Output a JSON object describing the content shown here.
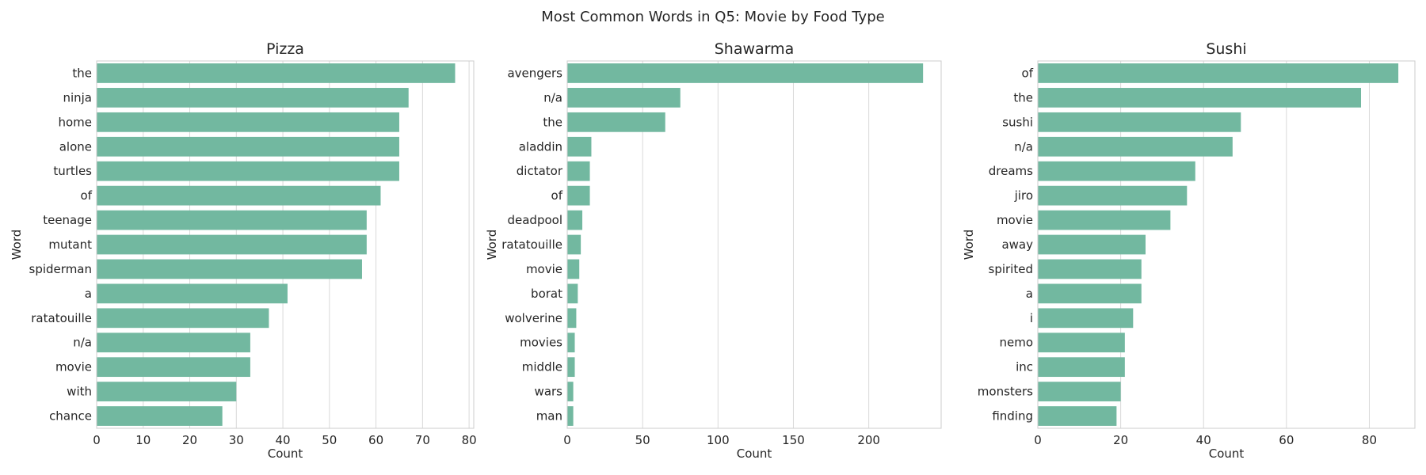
{
  "suptitle": "Most Common Words in Q5: Movie by Food Type",
  "bar_color": "#72b8a0",
  "chart_data": [
    {
      "type": "bar",
      "orientation": "horizontal",
      "title": "Pizza",
      "xlabel": "Count",
      "ylabel": "Word",
      "xlim": [
        0,
        81
      ],
      "xticks": [
        0,
        10,
        20,
        30,
        40,
        50,
        60,
        70,
        80
      ],
      "grid": true,
      "categories": [
        "the",
        "ninja",
        "home",
        "alone",
        "turtles",
        "of",
        "teenage",
        "mutant",
        "spiderman",
        "a",
        "ratatouille",
        "n/a",
        "movie",
        "with",
        "chance"
      ],
      "values": [
        77,
        67,
        65,
        65,
        65,
        61,
        58,
        58,
        57,
        41,
        37,
        33,
        33,
        30,
        27
      ]
    },
    {
      "type": "bar",
      "orientation": "horizontal",
      "title": "Shawarma",
      "xlabel": "Count",
      "ylabel": "Word",
      "xlim": [
        0,
        248
      ],
      "xticks": [
        0,
        50,
        100,
        150,
        200
      ],
      "grid": true,
      "categories": [
        "avengers",
        "n/a",
        "the",
        "aladdin",
        "dictator",
        "of",
        "deadpool",
        "ratatouille",
        "movie",
        "borat",
        "wolverine",
        "movies",
        "middle",
        "wars",
        "man"
      ],
      "values": [
        236,
        75,
        65,
        16,
        15,
        15,
        10,
        9,
        8,
        7,
        6,
        5,
        5,
        4,
        4
      ]
    },
    {
      "type": "bar",
      "orientation": "horizontal",
      "title": "Sushi",
      "xlabel": "Count",
      "ylabel": "Word",
      "xlim": [
        0,
        91
      ],
      "xticks": [
        0,
        20,
        40,
        60,
        80
      ],
      "grid": true,
      "categories": [
        "of",
        "the",
        "sushi",
        "n/a",
        "dreams",
        "jiro",
        "movie",
        "away",
        "spirited",
        "a",
        "i",
        "nemo",
        "inc",
        "monsters",
        "finding"
      ],
      "values": [
        87,
        78,
        49,
        47,
        38,
        36,
        32,
        26,
        25,
        25,
        23,
        21,
        21,
        20,
        19
      ]
    }
  ]
}
